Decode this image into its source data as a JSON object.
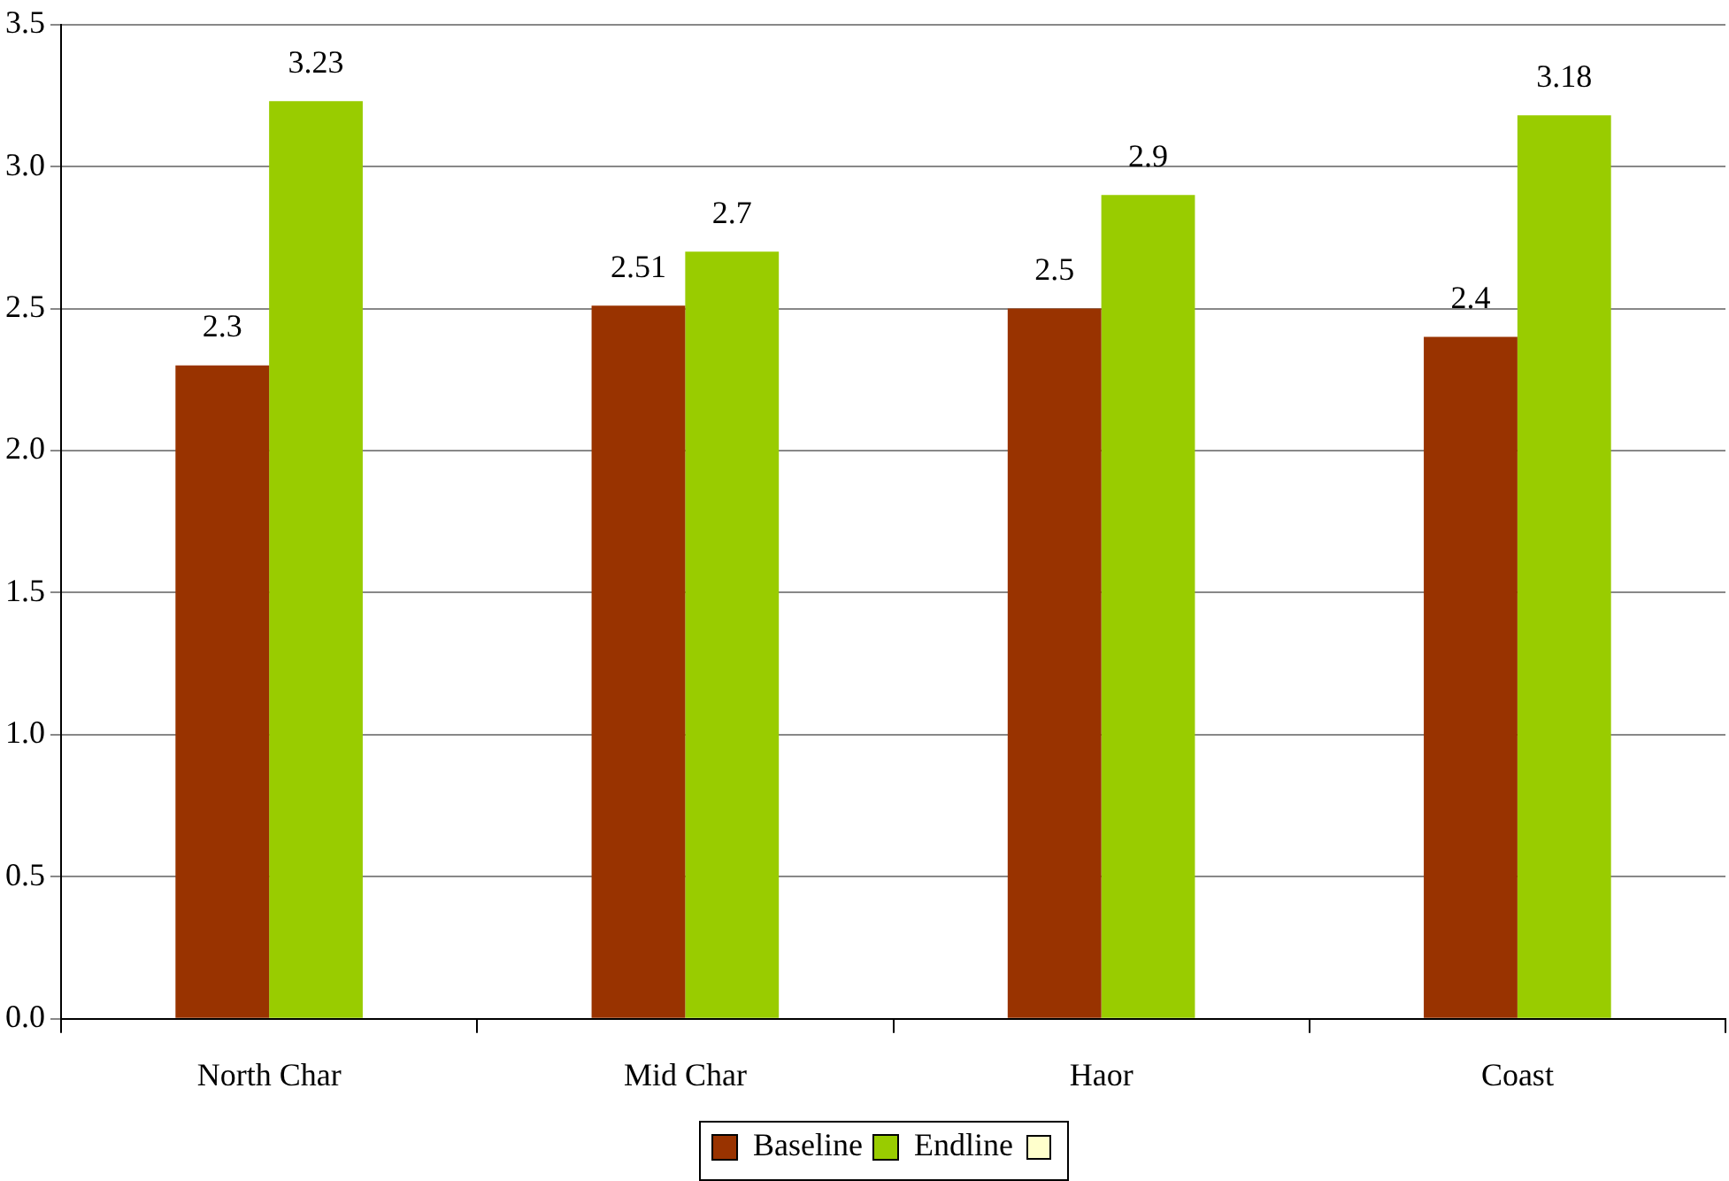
{
  "chart_data": {
    "type": "bar",
    "categories": [
      "North Char",
      "Mid Char",
      "Haor",
      "Coast"
    ],
    "series": [
      {
        "name": "Baseline",
        "color": "#993300",
        "values": [
          2.3,
          2.51,
          2.5,
          2.4
        ]
      },
      {
        "name": "Endline",
        "color": "#99cc00",
        "values": [
          3.23,
          2.7,
          2.9,
          3.18
        ]
      }
    ],
    "ylim": [
      0,
      3.5
    ],
    "yticks": [
      {
        "value": 0,
        "label": "0.0"
      },
      {
        "value": 0.5,
        "label": "0.5"
      },
      {
        "value": 1,
        "label": "1.0"
      },
      {
        "value": 1.5,
        "label": "1.5"
      },
      {
        "value": 2,
        "label": "2.0"
      },
      {
        "value": 2.5,
        "label": "2.5"
      },
      {
        "value": 3,
        "label": "3.0"
      },
      {
        "value": 3.5,
        "label": "3.5"
      }
    ],
    "grid": "y",
    "legend": "bottom",
    "data_labels": true
  }
}
